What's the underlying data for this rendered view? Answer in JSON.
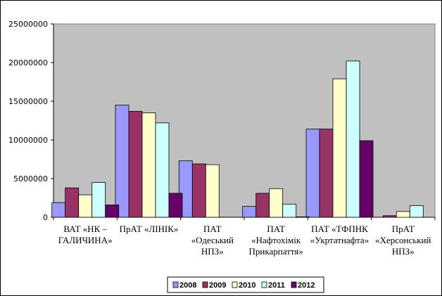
{
  "chart_data": {
    "type": "bar",
    "title": "",
    "xlabel": "",
    "ylabel": "",
    "ylim": [
      0,
      25000000
    ],
    "y_ticks": [
      "25000000",
      "20000000",
      "15000000",
      "10000000",
      "5000000",
      "0"
    ],
    "grid": false,
    "legend_position": "bottom",
    "categories": [
      [
        "ВАТ «НК –",
        "ГАЛИЧИНА»"
      ],
      [
        "ПрАТ «ЛІНІК»"
      ],
      [
        "ПАТ",
        "«Одеський",
        "НПЗ»"
      ],
      [
        "ПАТ",
        "«Нафтохімік",
        "Прикарпаття»"
      ],
      [
        "ПАТ «ТФПНК",
        "«Укртатнафта»"
      ],
      [
        "ПрАТ",
        "«Херсонський",
        "НПЗ»"
      ]
    ],
    "series": [
      {
        "name": "2008",
        "color": "#9999ff",
        "values": [
          1900000,
          14500000,
          7300000,
          1400000,
          11400000,
          0
        ]
      },
      {
        "name": "2009",
        "color": "#993366",
        "values": [
          3800000,
          13700000,
          6900000,
          3100000,
          11400000,
          200000
        ]
      },
      {
        "name": "2010",
        "color": "#ffffcc",
        "values": [
          2900000,
          13500000,
          6800000,
          3700000,
          17900000,
          750000
        ]
      },
      {
        "name": "2011",
        "color": "#ccffff",
        "values": [
          4500000,
          12200000,
          0,
          1700000,
          20200000,
          1500000
        ]
      },
      {
        "name": "2012",
        "color": "#660066",
        "values": [
          1600000,
          3100000,
          0,
          50000,
          9900000,
          0
        ]
      }
    ],
    "plot_background": "#c0c0c0"
  }
}
